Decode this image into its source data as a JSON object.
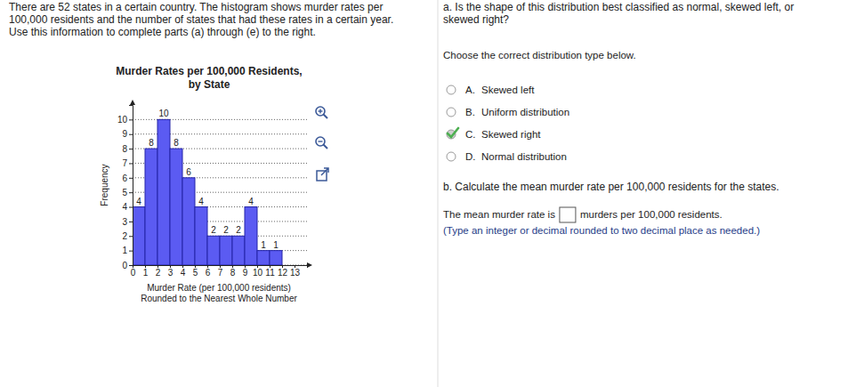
{
  "problem": {
    "lines": [
      "There are 52 states in a certain country. The histogram shows murder rates per",
      "100,000 residents and the number of states that had these rates in a certain year.",
      "Use this information to complete parts (a) through (e) to the right."
    ]
  },
  "chart_data": {
    "type": "histogram",
    "title": "Murder Rates per 100,000 Residents,",
    "subtitle": "by State",
    "xlabel": [
      "Murder Rate (per 100,000 residents)",
      "Rounded to the Nearest Whole Number"
    ],
    "ylabel": "Frequency",
    "bins": [
      0,
      1,
      2,
      3,
      4,
      5,
      6,
      7,
      8,
      9,
      10,
      11,
      12
    ],
    "values": [
      4,
      8,
      10,
      8,
      6,
      4,
      2,
      2,
      2,
      4,
      1,
      1
    ],
    "color": "#5b5bf2",
    "xlim": [
      0,
      14
    ],
    "xticks": [
      0,
      1,
      2,
      3,
      4,
      5,
      6,
      7,
      8,
      9,
      10,
      11,
      12,
      13
    ],
    "ylim": [
      0,
      11
    ],
    "yticks": [
      0,
      1,
      2,
      3,
      4,
      5,
      6,
      7,
      8,
      9,
      10
    ],
    "grid": true,
    "data_labels": true
  },
  "questions": {
    "part_a": {
      "prompt": [
        "a. Is the shape of this distribution best classified as normal, skewed left, or",
        "skewed right?"
      ],
      "instruction": "Choose the correct distribution type below.",
      "options": [
        {
          "letter": "A.",
          "text": "Skewed left"
        },
        {
          "letter": "B.",
          "text": "Uniform distribution"
        },
        {
          "letter": "C.",
          "text": "Skewed right",
          "selected": true
        },
        {
          "letter": "D.",
          "text": "Normal distribution"
        }
      ]
    },
    "part_b": {
      "prompt": "b. Calculate the mean murder rate per 100,000 residents for the states.",
      "answer_before": "The mean murder rate is",
      "answer_after": "murders per 100,000 residents.",
      "hint": "(Type an integer or decimal rounded to two decimal place as needed.)"
    }
  }
}
